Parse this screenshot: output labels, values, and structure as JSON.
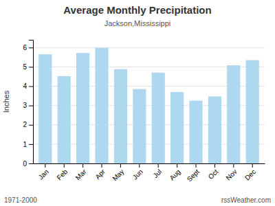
{
  "chart_data": {
    "type": "bar",
    "title": "Average Monthly Precipitation",
    "subtitle": "Jackson,Mississippi",
    "ylabel": "Inches",
    "categories": [
      "Jan",
      "Feb",
      "Mar",
      "Apr",
      "May",
      "Jun",
      "Jul",
      "Aug",
      "Sept",
      "Oct",
      "Nov",
      "Dec"
    ],
    "values": [
      5.65,
      4.52,
      5.72,
      5.98,
      4.88,
      3.85,
      4.7,
      3.7,
      3.25,
      3.47,
      5.08,
      5.35
    ],
    "color": "#ADD8F0",
    "ylim": [
      0.0,
      6.4
    ],
    "yticks": [
      0,
      1,
      2,
      3,
      4,
      5,
      6
    ],
    "grid": true,
    "annotations": [
      "1971-2000",
      "rssWeather.com"
    ]
  }
}
